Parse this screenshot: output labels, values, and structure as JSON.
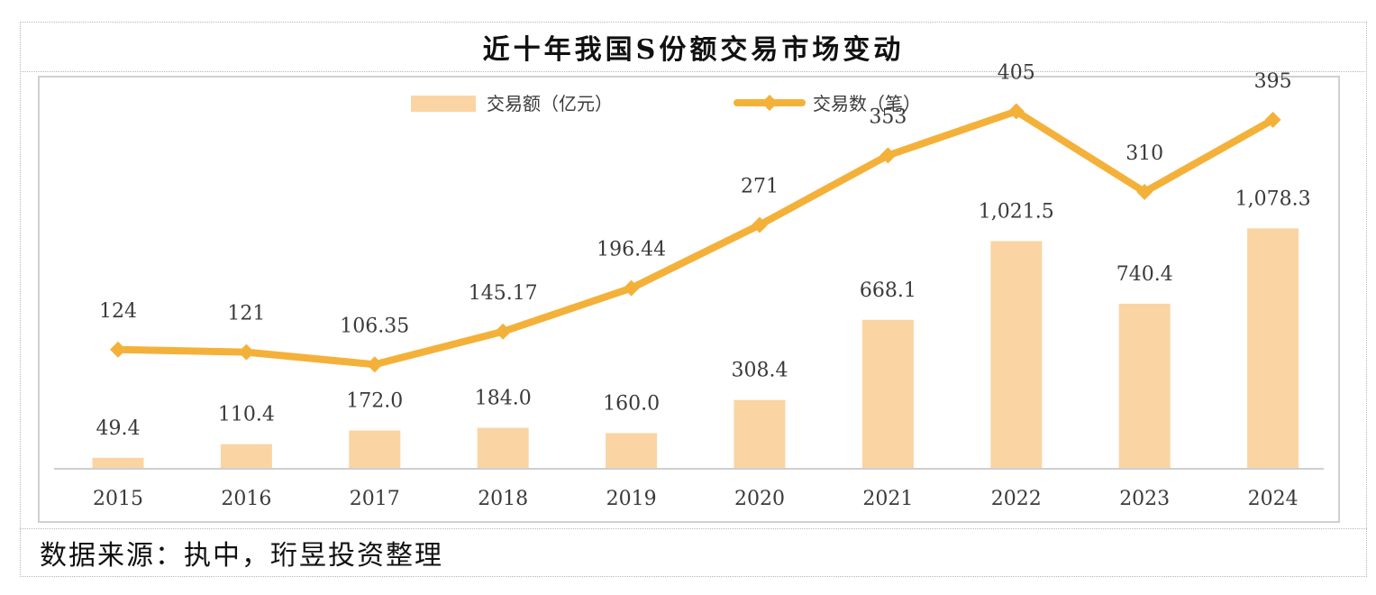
{
  "page": {
    "title": "近十年我国S份额交易市场变动",
    "source": "数据来源：执中，珩昱投资整理"
  },
  "colors": {
    "bar": "#fbd4a3",
    "line": "#f4b13a",
    "axis": "#cfcfcf",
    "text": "#3a3a3a"
  },
  "chart_data": {
    "type": "bar",
    "categories": [
      "2015",
      "2016",
      "2017",
      "2018",
      "2019",
      "2020",
      "2021",
      "2022",
      "2023",
      "2024"
    ],
    "series": [
      {
        "name": "交易额（亿元）",
        "type": "bar",
        "values": [
          49.4,
          110.4,
          172.0,
          184.0,
          160.0,
          308.4,
          668.1,
          1021.5,
          740.4,
          1078.3
        ],
        "labels": [
          "49.4",
          "110.4",
          "172.0",
          "184.0",
          "160.0",
          "308.4",
          "668.1",
          "1,021.5",
          "740.4",
          "1,078.3"
        ]
      },
      {
        "name": "交易数（笔）",
        "type": "line",
        "values": [
          124,
          121,
          106.35,
          145.17,
          196.44,
          271,
          353,
          405,
          310,
          395
        ],
        "labels": [
          "124",
          "121",
          "106.35",
          "145.17",
          "196.44",
          "271",
          "353",
          "405",
          "310",
          "395"
        ]
      }
    ],
    "legend_position": "top-center",
    "grid": false
  }
}
